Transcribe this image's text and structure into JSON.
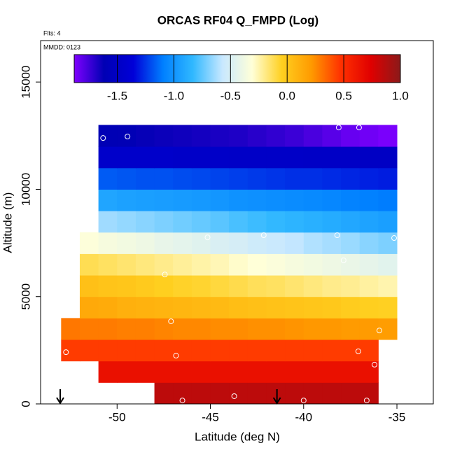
{
  "chart_data": {
    "type": "heatmap",
    "title": "ORCAS RF04 Q_FMPD (Log)",
    "subtitle": "Flts: 4",
    "annotation": "MMDD: 0123",
    "x_label": "Latitude (deg N)",
    "y_label": "Altitude (m)",
    "xlim": [
      -54.1,
      -33.05
    ],
    "xticks": [
      -50,
      -45,
      -40,
      -35
    ],
    "ylim": [
      0,
      16930
    ],
    "yticks": [
      0,
      5000,
      10000,
      15000
    ],
    "xbins": [
      -53,
      -52,
      -51,
      -50,
      -49,
      -48,
      -47,
      -46,
      -45,
      -44,
      -43,
      -42,
      -41,
      -40,
      -39,
      -38,
      -37,
      -36,
      -35
    ],
    "ybins": [
      0,
      1000,
      2000,
      3000,
      4000,
      5000,
      6000,
      7000,
      8000,
      9000,
      10000,
      11000,
      12000,
      13000
    ],
    "z": [
      [
        null,
        null,
        null,
        null,
        null,
        0.85,
        0.85,
        0.85,
        0.85,
        0.85,
        0.85,
        0.85,
        0.85,
        0.85,
        0.85,
        0.85,
        0.85,
        null
      ],
      [
        null,
        null,
        0.65,
        0.65,
        0.65,
        0.65,
        0.65,
        0.65,
        0.65,
        0.65,
        0.65,
        0.65,
        0.65,
        0.65,
        0.65,
        0.65,
        0.65,
        null
      ],
      [
        0.45,
        0.45,
        0.45,
        0.45,
        0.45,
        0.45,
        0.45,
        0.45,
        0.45,
        0.45,
        0.45,
        0.45,
        0.45,
        0.45,
        0.45,
        0.45,
        0.45,
        null
      ],
      [
        0.3,
        0.29,
        0.29,
        0.28,
        0.28,
        0.27,
        0.26,
        0.26,
        0.25,
        0.25,
        0.24,
        0.24,
        0.23,
        0.22,
        0.22,
        0.21,
        0.21,
        0.2
      ],
      [
        null,
        0.14,
        0.13,
        0.11,
        0.1,
        0.09,
        0.08,
        0.07,
        0.06,
        0.04,
        0.03,
        0.02,
        0.01,
        0,
        -0.01,
        -0.03,
        -0.04,
        -0.05
      ],
      [
        null,
        0.03,
        0.01,
        0,
        -0.02,
        -0.04,
        -0.06,
        -0.07,
        -0.09,
        -0.11,
        -0.13,
        -0.14,
        -0.16,
        -0.18,
        -0.2,
        -0.21,
        -0.23,
        -0.25
      ],
      [
        null,
        -0.12,
        -0.14,
        -0.16,
        -0.18,
        -0.2,
        -0.22,
        -0.24,
        -0.26,
        -0.29,
        -0.31,
        -0.33,
        -0.35,
        -0.37,
        -0.39,
        -0.41,
        -0.43,
        -0.45
      ],
      [
        null,
        -0.32,
        -0.35,
        -0.37,
        -0.39,
        -0.42,
        -0.44,
        -0.46,
        -0.49,
        -0.51,
        -0.54,
        -0.56,
        -0.58,
        -0.61,
        -0.63,
        -0.65,
        -0.68,
        -0.7
      ],
      [
        null,
        null,
        -0.64,
        -0.66,
        -0.68,
        -0.7,
        -0.72,
        -0.74,
        -0.76,
        -0.79,
        -0.81,
        -0.83,
        -0.85,
        -0.87,
        -0.89,
        -0.91,
        -0.93,
        -0.95
      ],
      [
        null,
        null,
        -0.92,
        -0.94,
        -0.95,
        -0.96,
        -0.97,
        -0.98,
        -0.99,
        -1.01,
        -1.02,
        -1.03,
        -1.04,
        -1.05,
        -1.06,
        -1.08,
        -1.09,
        -1.1
      ],
      [
        null,
        null,
        -1.17,
        -1.18,
        -1.19,
        -1.19,
        -1.2,
        -1.21,
        -1.22,
        -1.23,
        -1.24,
        -1.25,
        -1.26,
        -1.26,
        -1.27,
        -1.28,
        -1.29,
        -1.3
      ],
      [
        null,
        null,
        -1.46,
        -1.46,
        -1.46,
        -1.46,
        -1.47,
        -1.47,
        -1.47,
        -1.48,
        -1.48,
        -1.48,
        -1.48,
        -1.49,
        -1.49,
        -1.49,
        -1.5,
        -1.5
      ],
      [
        null,
        null,
        -1.61,
        -1.62,
        -1.63,
        -1.64,
        -1.65,
        -1.66,
        -1.67,
        -1.68,
        -1.7,
        -1.72,
        -1.74,
        -1.77,
        -1.8,
        -1.83,
        -1.85,
        -1.87
      ]
    ],
    "clim": [
      -1.88,
      1.0
    ],
    "cticks": [
      -1.5,
      {
        "value": -1,
        "label": "-1.0"
      },
      -0.5,
      {
        "value": 0,
        "label": "0.0"
      },
      0.5,
      {
        "value": 1,
        "label": "1.0"
      }
    ],
    "colors": [
      "#7f00ff",
      "#0000b4",
      "#0000d8",
      "#0080ff",
      "#30b8ff",
      "#c8e8ff",
      "#ffffd8",
      "#ffd020",
      "#ff9a00",
      "#ff3000",
      "#e00000",
      "#8b1a1a"
    ],
    "points": {
      "x": [
        -50.75,
        -49.44,
        -38.12,
        -37.03,
        -34.62,
        -45.15,
        -42.14,
        -38.2,
        -35.15,
        -37.86,
        -47.44,
        -52.22,
        -47.11,
        -35.94,
        -37.07,
        -52.74,
        -46.84,
        -36.2,
        -43.72,
        -46.5,
        -40.0,
        -36.62
      ],
      "y": [
        12390,
        12460,
        12880,
        12880,
        12880,
        7760,
        7860,
        7860,
        7730,
        6690,
        6030,
        5410,
        3850,
        3420,
        2450,
        2410,
        2250,
        1830,
        360,
        160,
        160,
        160
      ]
    },
    "arrow_x": [
      -53.05,
      -41.43
    ]
  }
}
